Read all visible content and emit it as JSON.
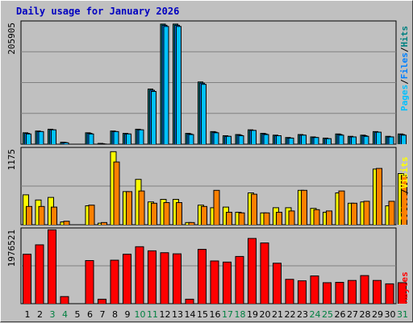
{
  "title": "Daily usage for January 2026",
  "colors": {
    "pages": "#00c0ff",
    "files": "#0080ff",
    "hits": "#008080",
    "visits": "#ffff00",
    "sites": "#ff8000",
    "kbytes": "#ff0000",
    "weekend": "#008040",
    "weekday": "#000000",
    "plot_bg": "#c0c0c0",
    "grid": "#808080"
  },
  "chart_data": [
    {
      "type": "bar",
      "panel": "hits-files-pages",
      "ymax_label": "205905",
      "ylim": [
        0,
        205905
      ],
      "grid": true,
      "side_labels": [
        "Pages",
        "/",
        "Files",
        "/",
        "Hits"
      ],
      "categories": [
        "1",
        "2",
        "3",
        "4",
        "5",
        "6",
        "7",
        "8",
        "9",
        "10",
        "11",
        "12",
        "13",
        "14",
        "15",
        "16",
        "17",
        "18",
        "19",
        "20",
        "21",
        "22",
        "23",
        "24",
        "25",
        "26",
        "27",
        "28",
        "29",
        "30",
        "31"
      ],
      "series": [
        {
          "name": "Hits",
          "values": [
            20000,
            23000,
            26000,
            4000,
            0,
            20000,
            2000,
            23000,
            19000,
            26000,
            94000,
            204000,
            204000,
            19000,
            106000,
            22000,
            15000,
            17000,
            25000,
            19000,
            16000,
            12000,
            17000,
            13000,
            11000,
            18000,
            14000,
            16000,
            22000,
            14000,
            18000
          ]
        },
        {
          "name": "Files",
          "values": [
            19000,
            22000,
            25000,
            3500,
            0,
            19000,
            1500,
            22000,
            18000,
            25000,
            92000,
            202000,
            202000,
            18000,
            104000,
            21000,
            14000,
            16000,
            24000,
            18000,
            15000,
            11000,
            16000,
            12000,
            10000,
            17000,
            13000,
            15000,
            21000,
            13000,
            17000
          ]
        },
        {
          "name": "Pages",
          "values": [
            18000,
            22000,
            25000,
            3000,
            0,
            18000,
            1000,
            22000,
            18000,
            25000,
            90000,
            200000,
            200000,
            17000,
            102000,
            20000,
            14000,
            15000,
            24000,
            17000,
            15000,
            11000,
            16000,
            12000,
            10000,
            16000,
            13000,
            14000,
            21000,
            13000,
            16000
          ]
        }
      ]
    },
    {
      "type": "bar",
      "panel": "visits-sites",
      "ymax_label": "1175",
      "ylim": [
        0,
        1175
      ],
      "grid": true,
      "side_labels": [
        "Sites",
        "/",
        "Visits"
      ],
      "categories": [
        "1",
        "2",
        "3",
        "4",
        "5",
        "6",
        "7",
        "8",
        "9",
        "10",
        "11",
        "12",
        "13",
        "14",
        "15",
        "16",
        "17",
        "18",
        "19",
        "20",
        "21",
        "22",
        "23",
        "24",
        "25",
        "26",
        "27",
        "28",
        "29",
        "30",
        "31"
      ],
      "series": [
        {
          "name": "Visits",
          "values": [
            470,
            390,
            430,
            50,
            0,
            300,
            30,
            1140,
            520,
            710,
            360,
            400,
            400,
            40,
            310,
            270,
            280,
            200,
            500,
            190,
            270,
            270,
            540,
            260,
            200,
            500,
            340,
            360,
            870,
            300,
            800
          ]
        },
        {
          "name": "Sites",
          "values": [
            290,
            290,
            280,
            60,
            0,
            310,
            40,
            980,
            520,
            530,
            340,
            350,
            350,
            40,
            290,
            540,
            200,
            190,
            480,
            190,
            200,
            220,
            540,
            240,
            220,
            530,
            340,
            370,
            880,
            370,
            770
          ]
        }
      ]
    },
    {
      "type": "bar",
      "panel": "kbytes",
      "ymax_label": "1976521",
      "ylim": [
        0,
        1976521
      ],
      "grid": true,
      "side_labels": [
        "KBytes"
      ],
      "categories": [
        "1",
        "2",
        "3",
        "4",
        "5",
        "6",
        "7",
        "8",
        "9",
        "10",
        "11",
        "12",
        "13",
        "14",
        "15",
        "16",
        "17",
        "18",
        "19",
        "20",
        "21",
        "22",
        "23",
        "24",
        "25",
        "26",
        "27",
        "28",
        "29",
        "30",
        "31"
      ],
      "series": [
        {
          "name": "KBytes",
          "values": [
            1330000,
            1580000,
            1980000,
            200000,
            0,
            1160000,
            130000,
            1170000,
            1330000,
            1530000,
            1420000,
            1370000,
            1340000,
            130000,
            1460000,
            1150000,
            1120000,
            1270000,
            1750000,
            1630000,
            1090000,
            660000,
            620000,
            750000,
            570000,
            580000,
            630000,
            760000,
            630000,
            540000,
            570000
          ]
        }
      ]
    }
  ]
}
